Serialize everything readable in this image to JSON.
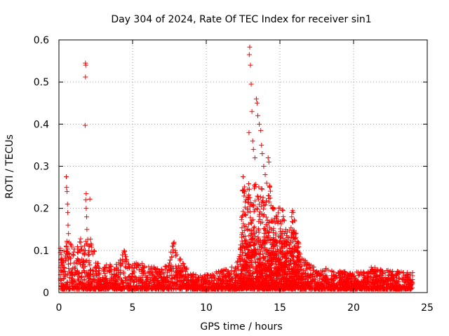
{
  "chart_data": {
    "type": "scatter",
    "title": "Day 304 of 2024, Rate Of TEC Index for receiver sin1",
    "xlabel": "GPS time / hours",
    "ylabel": "ROTI / TECUs",
    "xlim": [
      0,
      25
    ],
    "ylim": [
      0,
      0.6
    ],
    "x_ticks": [
      0,
      5,
      10,
      15,
      20,
      25
    ],
    "y_ticks": [
      0,
      0.1,
      0.2,
      0.3,
      0.4,
      0.5,
      0.6
    ],
    "x_tick_labels": [
      "0",
      "5",
      "10",
      "15",
      "20",
      "25"
    ],
    "y_tick_labels": [
      "0",
      "0.1",
      "0.2",
      "0.3",
      "0.4",
      "0.5",
      "0.6"
    ],
    "grid": true,
    "marker": "+",
    "marker_color": "#ff0000",
    "series": [
      {
        "name": "ROTI",
        "points": [
          [
            0.1,
            0.105
          ],
          [
            0.15,
            0.09
          ],
          [
            0.2,
            0.08
          ],
          [
            0.25,
            0.07
          ],
          [
            0.3,
            0.06
          ],
          [
            0.5,
            0.275
          ],
          [
            0.52,
            0.25
          ],
          [
            0.55,
            0.24
          ],
          [
            0.58,
            0.21
          ],
          [
            0.6,
            0.19
          ],
          [
            0.62,
            0.16
          ],
          [
            0.65,
            0.14
          ],
          [
            0.68,
            0.12
          ],
          [
            0.7,
            0.085
          ],
          [
            1.8,
            0.545
          ],
          [
            1.82,
            0.54
          ],
          [
            1.8,
            0.512
          ],
          [
            1.78,
            0.397
          ],
          [
            1.85,
            0.235
          ],
          [
            1.82,
            0.22
          ],
          [
            1.85,
            0.2
          ],
          [
            1.88,
            0.18
          ],
          [
            1.9,
            0.15
          ],
          [
            1.95,
            0.115
          ],
          [
            2.1,
            0.222
          ],
          [
            2.5,
            0.07
          ],
          [
            2.7,
            0.06
          ],
          [
            3.0,
            0.055
          ],
          [
            3.4,
            0.06
          ],
          [
            3.8,
            0.055
          ],
          [
            4.4,
            0.095
          ],
          [
            4.5,
            0.09
          ],
          [
            4.6,
            0.075
          ],
          [
            4.8,
            0.06
          ],
          [
            5.5,
            0.065
          ],
          [
            5.8,
            0.06
          ],
          [
            6.2,
            0.055
          ],
          [
            6.8,
            0.05
          ],
          [
            7.2,
            0.055
          ],
          [
            7.5,
            0.07
          ],
          [
            7.7,
            0.11
          ],
          [
            7.8,
            0.115
          ],
          [
            7.9,
            0.1
          ],
          [
            8.0,
            0.09
          ],
          [
            8.2,
            0.08
          ],
          [
            8.5,
            0.06
          ],
          [
            9.0,
            0.04
          ],
          [
            9.5,
            0.035
          ],
          [
            10.0,
            0.035
          ],
          [
            10.5,
            0.04
          ],
          [
            11.0,
            0.045
          ],
          [
            11.5,
            0.05
          ],
          [
            12.0,
            0.06
          ],
          [
            12.3,
            0.09
          ],
          [
            12.5,
            0.275
          ],
          [
            12.6,
            0.24
          ],
          [
            12.7,
            0.22
          ],
          [
            12.8,
            0.2
          ],
          [
            12.9,
            0.38
          ],
          [
            12.95,
            0.583
          ],
          [
            12.92,
            0.565
          ],
          [
            13.0,
            0.54
          ],
          [
            13.05,
            0.495
          ],
          [
            13.1,
            0.43
          ],
          [
            13.15,
            0.36
          ],
          [
            13.2,
            0.34
          ],
          [
            13.3,
            0.32
          ],
          [
            13.4,
            0.46
          ],
          [
            13.45,
            0.45
          ],
          [
            13.5,
            0.42
          ],
          [
            13.6,
            0.4
          ],
          [
            13.7,
            0.385
          ],
          [
            13.75,
            0.35
          ],
          [
            13.8,
            0.33
          ],
          [
            13.9,
            0.3
          ],
          [
            14.0,
            0.28
          ],
          [
            14.1,
            0.26
          ],
          [
            14.2,
            0.32
          ],
          [
            14.25,
            0.31
          ],
          [
            14.3,
            0.25
          ],
          [
            14.5,
            0.2
          ],
          [
            14.8,
            0.18
          ],
          [
            15.0,
            0.2
          ],
          [
            15.2,
            0.195
          ],
          [
            15.4,
            0.15
          ],
          [
            15.6,
            0.13
          ],
          [
            15.8,
            0.18
          ],
          [
            15.9,
            0.19
          ],
          [
            16.0,
            0.17
          ],
          [
            16.2,
            0.12
          ],
          [
            16.5,
            0.08
          ],
          [
            17.0,
            0.06
          ],
          [
            17.5,
            0.05
          ],
          [
            18.0,
            0.05
          ],
          [
            19.0,
            0.045
          ],
          [
            20.0,
            0.04
          ],
          [
            21.0,
            0.045
          ],
          [
            21.2,
            0.06
          ],
          [
            21.5,
            0.05
          ],
          [
            22.0,
            0.045
          ],
          [
            23.0,
            0.045
          ],
          [
            23.5,
            0.04
          ],
          [
            24.0,
            0.04
          ]
        ]
      }
    ]
  }
}
